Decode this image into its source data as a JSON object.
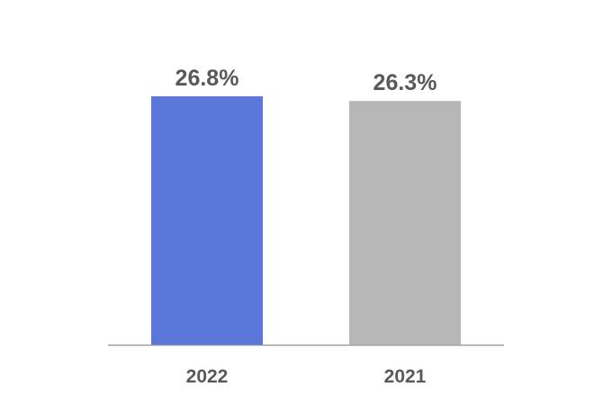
{
  "chart_data": {
    "type": "bar",
    "categories": [
      "2022",
      "2021"
    ],
    "values": [
      26.8,
      26.3
    ],
    "data_labels": [
      "26.8%",
      "26.3%"
    ],
    "colors": [
      "#5A77D9",
      "#B7B7B7"
    ],
    "title": "",
    "xlabel": "",
    "ylabel": "",
    "grid": false,
    "legend": "none"
  }
}
